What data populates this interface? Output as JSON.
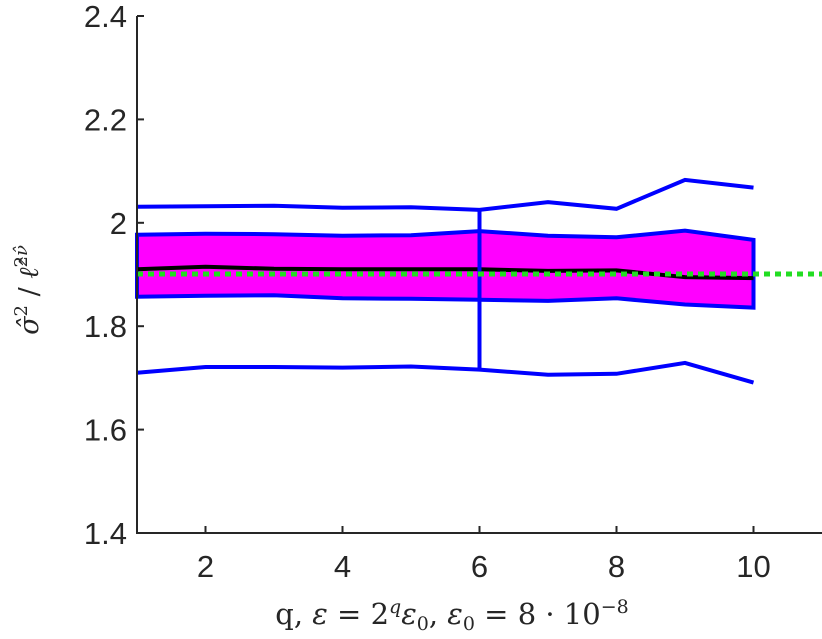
{
  "chart_data": {
    "type": "area",
    "title": "",
    "xlabel": "q, ε = 2^q ε₀, ε₀ = 8 · 10⁻⁸",
    "ylabel": "σ̂² / ℓ̂^(2ν̂)",
    "xlim": [
      1,
      11
    ],
    "ylim": [
      1.4,
      2.4
    ],
    "x_ticks": [
      2,
      4,
      6,
      8,
      10
    ],
    "y_ticks": [
      1.4,
      1.6,
      1.8,
      2.0,
      2.2,
      2.4
    ],
    "x_tick_labels": [
      "2",
      "4",
      "6",
      "8",
      "10"
    ],
    "y_tick_labels": [
      "1.4",
      "1.6",
      "1.8",
      "2",
      "2.2",
      "2.4"
    ],
    "grid": false,
    "x": [
      1,
      2,
      3,
      4,
      5,
      6,
      7,
      8,
      9,
      10
    ],
    "series": [
      {
        "role": "box-upper",
        "values": [
          1.977,
          1.979,
          1.978,
          1.975,
          1.976,
          1.984,
          1.975,
          1.972,
          1.985,
          1.967
        ]
      },
      {
        "role": "box-lower",
        "values": [
          1.857,
          1.859,
          1.86,
          1.854,
          1.853,
          1.851,
          1.849,
          1.854,
          1.842,
          1.836
        ]
      },
      {
        "role": "median",
        "values": [
          1.91,
          1.915,
          1.911,
          1.91,
          1.91,
          1.91,
          1.907,
          1.908,
          1.895,
          1.893
        ]
      },
      {
        "role": "whisker-upper",
        "values": [
          2.031,
          2.032,
          2.033,
          2.029,
          2.03,
          2.025,
          2.04,
          2.027,
          2.083,
          2.068
        ]
      },
      {
        "role": "whisker-lower",
        "values": [
          1.71,
          1.721,
          1.721,
          1.72,
          1.722,
          1.716,
          1.706,
          1.708,
          1.729,
          1.691
        ]
      }
    ],
    "reference_line_y": 1.901,
    "separator_x": 6,
    "colors": {
      "fill": "#ff00ff",
      "outline": "#0000ff",
      "median": "#000000",
      "reference": "#22dd22",
      "axis": "#262626"
    }
  }
}
